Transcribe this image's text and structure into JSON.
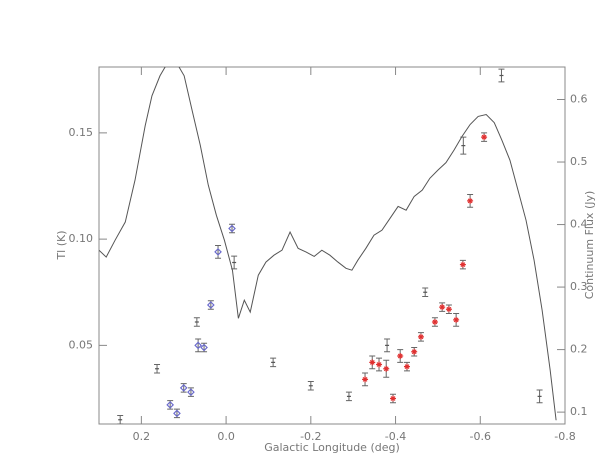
{
  "chart_data": {
    "type": "scatter",
    "x_label": "Galactic Longitude (deg)",
    "y_label": "Tl (K)",
    "y2_label": "Continuum Flux (Jy)",
    "xlim": [
      0.3,
      -0.8
    ],
    "xticks": [
      0.2,
      {
        "value": 0,
        "label": "0.0"
      },
      -0.2,
      -0.4,
      -0.6,
      -0.8
    ],
    "ylim": [
      0.013,
      0.181
    ],
    "yticks": [
      0.05,
      {
        "value": 0.1,
        "label": "0.10"
      },
      0.15
    ],
    "y2lim": [
      0.081,
      0.652
    ],
    "y2ticks": [
      0.1,
      0.2,
      0.3,
      0.4,
      0.5,
      0.6
    ],
    "series": [
      {
        "type": "errorbar",
        "marker": "plus",
        "color": "#555555",
        "x": [
          0.25,
          0.163,
          0.069,
          -0.019,
          -0.111,
          -0.2,
          -0.29,
          -0.38,
          -0.47,
          -0.56,
          -0.65,
          -0.74
        ],
        "values": [
          0.015,
          0.039,
          0.061,
          0.089,
          0.042,
          0.031,
          0.026,
          0.05,
          0.075,
          0.144,
          0.177,
          0.026
        ],
        "errors": [
          0.002,
          0.002,
          0.002,
          0.003,
          0.002,
          0.002,
          0.002,
          0.003,
          0.002,
          0.004,
          0.003,
          0.003
        ]
      },
      {
        "type": "errorbar",
        "marker": "diamond",
        "color": "#6a6acd",
        "x": [
          0.132,
          0.116,
          0.1,
          0.083,
          0.066,
          0.052,
          0.036,
          0.019,
          -0.014
        ],
        "values": [
          0.022,
          0.018,
          0.03,
          0.028,
          0.05,
          0.049,
          0.069,
          0.094,
          0.105
        ],
        "errors": [
          0.002,
          0.002,
          0.002,
          0.002,
          0.003,
          0.002,
          0.002,
          0.003,
          0.002
        ]
      },
      {
        "type": "errorbar",
        "marker": "star",
        "color": "#e03030",
        "x": [
          -0.328,
          -0.345,
          -0.361,
          -0.378,
          -0.394,
          -0.411,
          -0.427,
          -0.444,
          -0.46,
          -0.493,
          -0.51,
          -0.526,
          -0.543,
          -0.559,
          -0.576,
          -0.609
        ],
        "values": [
          0.034,
          0.042,
          0.041,
          0.039,
          0.025,
          0.045,
          0.04,
          0.047,
          0.054,
          0.061,
          0.068,
          0.067,
          0.062,
          0.088,
          0.118,
          0.148
        ],
        "errors": [
          0.003,
          0.003,
          0.003,
          0.004,
          0.002,
          0.003,
          0.002,
          0.002,
          0.002,
          0.002,
          0.002,
          0.002,
          0.003,
          0.002,
          0.003,
          0.002
        ]
      },
      {
        "type": "line",
        "axis": "y2",
        "color": "#555555",
        "x": [
          0.3,
          0.283,
          0.262,
          0.238,
          0.215,
          0.191,
          0.175,
          0.156,
          0.137,
          0.118,
          0.099,
          0.08,
          0.061,
          0.042,
          0.023,
          0.004,
          -0.015,
          -0.029,
          -0.043,
          -0.057,
          -0.076,
          -0.094,
          -0.113,
          -0.132,
          -0.151,
          -0.17,
          -0.189,
          -0.208,
          -0.226,
          -0.245,
          -0.264,
          -0.283,
          -0.297,
          -0.311,
          -0.33,
          -0.349,
          -0.368,
          -0.387,
          -0.406,
          -0.425,
          -0.444,
          -0.463,
          -0.481,
          -0.5,
          -0.519,
          -0.538,
          -0.557,
          -0.576,
          -0.595,
          -0.614,
          -0.633,
          -0.651,
          -0.67,
          -0.689,
          -0.708,
          -0.727,
          -0.746,
          -0.765,
          -0.779
        ],
        "values": [
          0.359,
          0.348,
          0.375,
          0.404,
          0.471,
          0.558,
          0.606,
          0.638,
          0.66,
          0.66,
          0.638,
          0.582,
          0.527,
          0.463,
          0.415,
          0.375,
          0.327,
          0.25,
          0.279,
          0.26,
          0.319,
          0.34,
          0.351,
          0.359,
          0.388,
          0.362,
          0.356,
          0.349,
          0.359,
          0.351,
          0.34,
          0.33,
          0.327,
          0.343,
          0.362,
          0.383,
          0.391,
          0.41,
          0.429,
          0.423,
          0.445,
          0.455,
          0.474,
          0.487,
          0.499,
          0.519,
          0.541,
          0.56,
          0.573,
          0.576,
          0.563,
          0.535,
          0.503,
          0.455,
          0.407,
          0.343,
          0.263,
          0.167,
          0.087
        ]
      }
    ]
  }
}
